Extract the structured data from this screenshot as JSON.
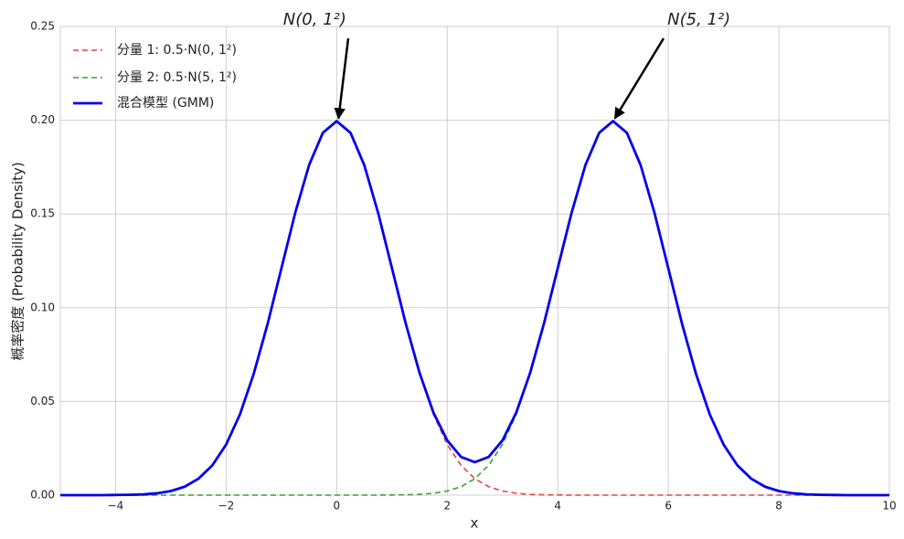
{
  "chart_data": {
    "type": "line",
    "x_label": "x",
    "y_label": "概率密度 (Probability Density)",
    "xlim": [
      -5,
      10
    ],
    "ylim": [
      0,
      0.25
    ],
    "xticks": [
      {
        "value": -4,
        "label": "−4"
      },
      {
        "value": -2,
        "label": "−2"
      },
      0,
      2,
      4,
      6,
      8,
      10
    ],
    "yticks": [
      {
        "value": 0,
        "label": "0.00"
      },
      {
        "value": 0.05,
        "label": "0.05"
      },
      {
        "value": 0.1,
        "label": "0.10"
      },
      {
        "value": 0.15,
        "label": "0.15"
      },
      {
        "value": 0.2,
        "label": "0.20"
      },
      {
        "value": 0.25,
        "label": "0.25"
      }
    ],
    "grid": true,
    "legend": "upper left",
    "x": [
      -5,
      -4.75,
      -4.5,
      -4.25,
      -4,
      -3.75,
      -3.5,
      -3.25,
      -3,
      -2.75,
      -2.5,
      -2.25,
      -2,
      -1.75,
      -1.5,
      -1.25,
      -1,
      -0.75,
      -0.5,
      -0.25,
      0,
      0.25,
      0.5,
      0.75,
      1,
      1.25,
      1.5,
      1.75,
      2,
      2.25,
      2.5,
      2.75,
      3,
      3.25,
      3.5,
      3.75,
      4,
      4.25,
      4.5,
      4.75,
      5,
      5.25,
      5.5,
      5.75,
      6,
      6.25,
      6.5,
      6.75,
      7,
      7.25,
      7.5,
      7.75,
      8,
      8.25,
      8.5,
      8.75,
      9,
      9.25,
      9.5,
      9.75,
      10
    ],
    "series": [
      {
        "name": "分量 1: 0.5·N(0, 1²)",
        "color": "#e8433f",
        "dashed": true,
        "width": 1.6,
        "values": [
          0,
          0,
          0,
          0,
          0.0001,
          0.0002,
          0.0004,
          0.001,
          0.0022,
          0.0045,
          0.0088,
          0.0159,
          0.027,
          0.0431,
          0.0648,
          0.0913,
          0.121,
          0.1506,
          0.176,
          0.1933,
          0.1995,
          0.1933,
          0.176,
          0.1506,
          0.121,
          0.0913,
          0.0648,
          0.0431,
          0.027,
          0.0159,
          0.0088,
          0.0045,
          0.0022,
          0.001,
          0.0004,
          0.0002,
          0.0001,
          0,
          0,
          0,
          0,
          0,
          0,
          0,
          0,
          0,
          0,
          0,
          0,
          0,
          0,
          0,
          0,
          0,
          0,
          0,
          0,
          0,
          0,
          0,
          0
        ]
      },
      {
        "name": "分量 2: 0.5·N(5, 1²)",
        "color": "#3a9e3a",
        "dashed": true,
        "width": 1.6,
        "values": [
          0,
          0,
          0,
          0,
          0,
          0,
          0,
          0,
          0,
          0,
          0,
          0,
          0,
          0,
          0,
          0,
          0,
          0,
          0,
          0,
          0,
          0,
          0,
          0,
          0.0001,
          0.0002,
          0.0004,
          0.001,
          0.0022,
          0.0045,
          0.0088,
          0.0159,
          0.027,
          0.0431,
          0.0648,
          0.0913,
          0.121,
          0.1506,
          0.176,
          0.1933,
          0.1995,
          0.1933,
          0.176,
          0.1506,
          0.121,
          0.0913,
          0.0648,
          0.0431,
          0.027,
          0.0159,
          0.0088,
          0.0045,
          0.0022,
          0.001,
          0.0004,
          0.0002,
          0.0001,
          0,
          0,
          0,
          0
        ]
      },
      {
        "name": "混合模型 (GMM)",
        "color": "#0000ee",
        "dashed": false,
        "width": 2.8,
        "values": [
          0,
          0,
          0,
          0,
          0.0001,
          0.0002,
          0.0004,
          0.001,
          0.0022,
          0.0045,
          0.0088,
          0.0159,
          0.027,
          0.0431,
          0.0648,
          0.0913,
          0.121,
          0.1506,
          0.176,
          0.1933,
          0.1995,
          0.1933,
          0.176,
          0.1506,
          0.1211,
          0.0915,
          0.0652,
          0.0441,
          0.0292,
          0.0204,
          0.0176,
          0.0204,
          0.0292,
          0.0441,
          0.0652,
          0.0915,
          0.1211,
          0.1506,
          0.176,
          0.1933,
          0.1995,
          0.1933,
          0.176,
          0.1506,
          0.121,
          0.0913,
          0.0648,
          0.0431,
          0.027,
          0.0159,
          0.0088,
          0.0045,
          0.0022,
          0.001,
          0.0004,
          0.0002,
          0.0001,
          0,
          0,
          0,
          0
        ]
      }
    ],
    "annotations": [
      {
        "text": "N(0, 1²)",
        "x": 0,
        "y": 0.2
      },
      {
        "text": "N(5, 1²)",
        "x": 5,
        "y": 0.2
      }
    ]
  }
}
